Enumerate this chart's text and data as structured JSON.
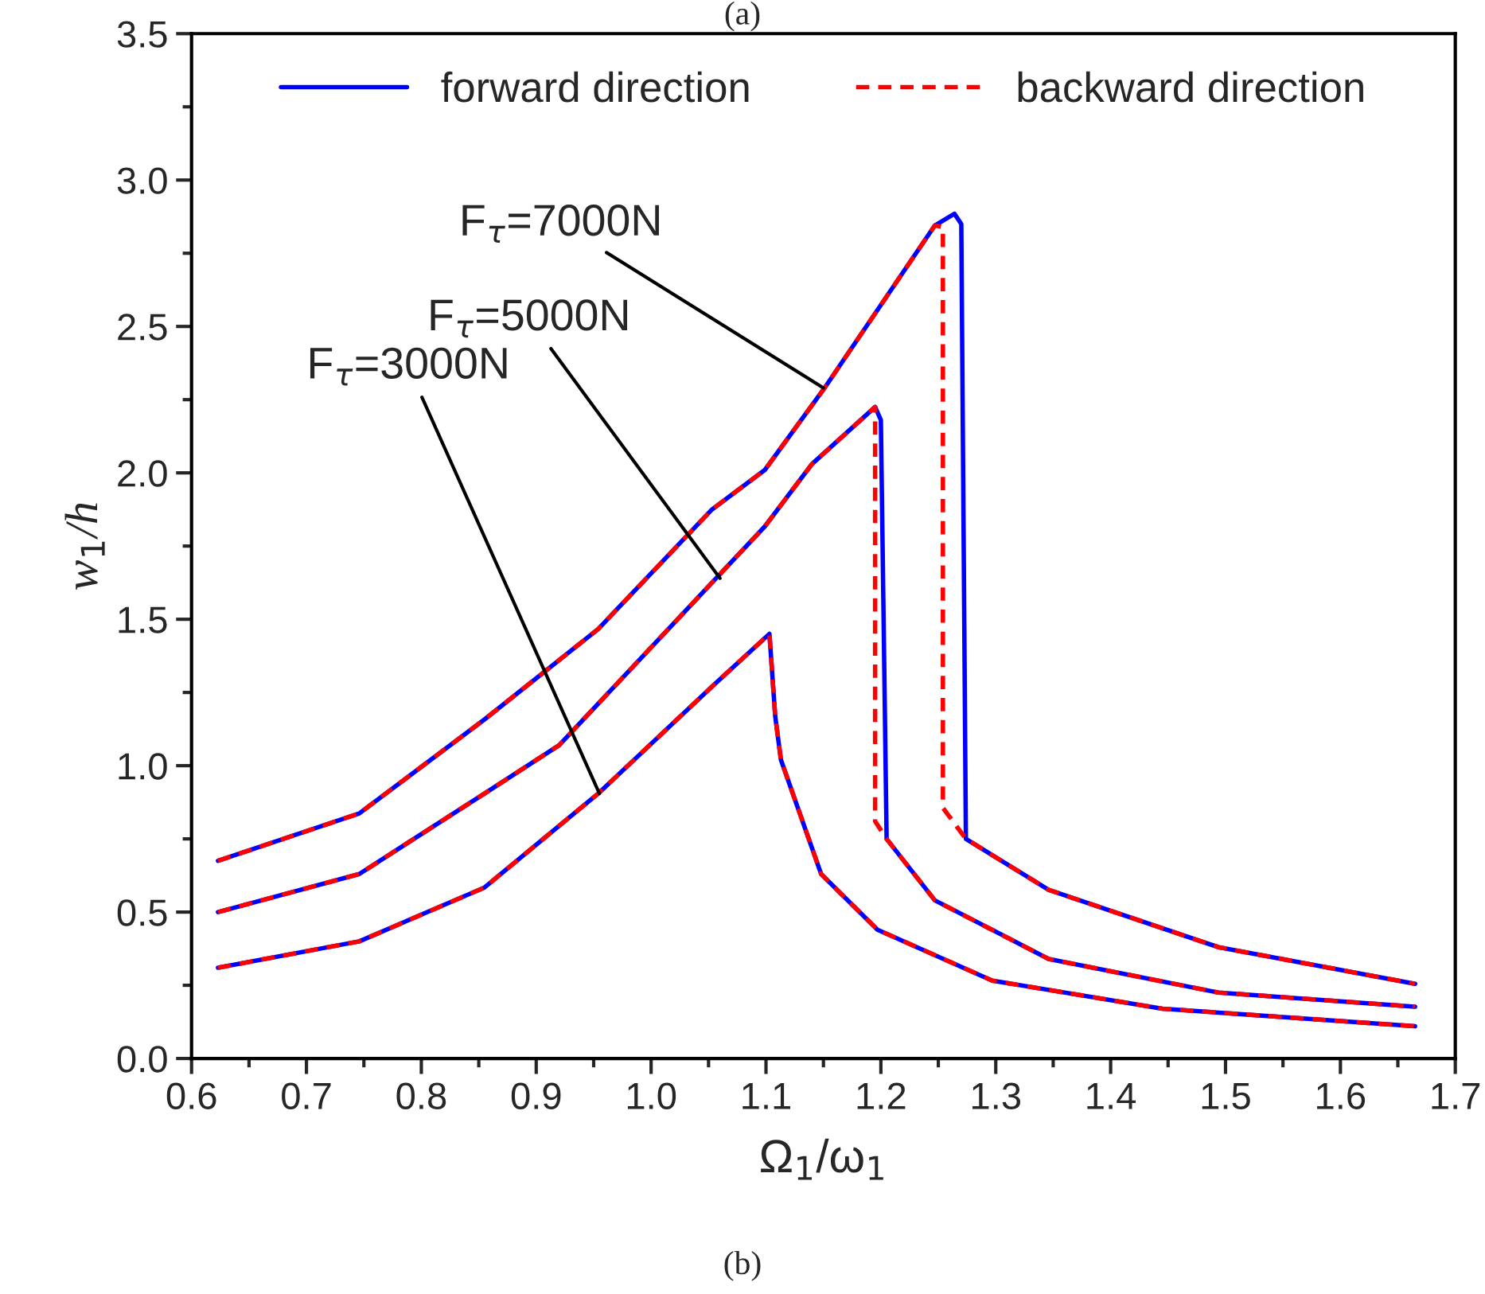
{
  "chart_data": {
    "type": "line",
    "title": "(a)",
    "xlabel": "Ω$_{1}$/ω$_{1}$",
    "ylabel": "w$_{1}$/h",
    "xlim": [
      0.6,
      1.7
    ],
    "ylim": [
      0,
      3.5
    ],
    "xticks": [
      0.6,
      0.7,
      0.8,
      0.9,
      {
        "value": 1,
        "label": "1.0"
      },
      1.1,
      1.2,
      1.3,
      1.4,
      1.5,
      1.6,
      1.7
    ],
    "yticks": [
      {
        "value": 0,
        "label": "0.0"
      },
      0.5,
      {
        "value": 1,
        "label": "1.0"
      },
      1.5,
      {
        "value": 2,
        "label": "2.0"
      },
      2.5,
      {
        "value": 3,
        "label": "3.0"
      },
      3.5
    ],
    "legend": "top",
    "grid": false,
    "series": [
      {
        "name": "forward direction",
        "color": "#0000ff",
        "line_style": "solid",
        "x": [
          0.623,
          0.746,
          0.855,
          0.954,
          1.053,
          1.103,
          1.108,
          1.113,
          1.148,
          1.197,
          1.297,
          1.445,
          1.665,
          null,
          0.623,
          0.746,
          0.855,
          0.92,
          1.053,
          1.099,
          1.14,
          1.195,
          1.2,
          1.205,
          1.247,
          1.346,
          1.494,
          1.665,
          null,
          0.623,
          0.746,
          0.855,
          0.954,
          1.053,
          1.099,
          1.151,
          1.247,
          1.264,
          1.27,
          1.274,
          1.346,
          1.494,
          1.665
        ],
        "values": [
          0.31,
          0.4,
          0.584,
          0.905,
          1.27,
          1.45,
          1.17,
          1.02,
          0.63,
          0.44,
          0.266,
          0.17,
          0.11,
          null,
          0.5,
          0.63,
          0.905,
          1.07,
          1.625,
          1.817,
          2.03,
          2.225,
          2.18,
          0.75,
          0.54,
          0.34,
          0.225,
          0.177,
          null,
          0.675,
          0.837,
          1.158,
          1.467,
          1.875,
          2.01,
          2.29,
          2.845,
          2.885,
          2.85,
          0.75,
          0.576,
          0.38,
          0.255
        ]
      },
      {
        "name": "backward direction",
        "color": "#ff0000",
        "line_style": "dashed",
        "x": [
          0.623,
          0.746,
          0.855,
          0.954,
          1.053,
          1.103,
          1.108,
          1.113,
          1.148,
          1.197,
          1.297,
          1.445,
          1.665,
          null,
          0.623,
          0.746,
          0.855,
          0.92,
          1.053,
          1.099,
          1.14,
          1.195,
          1.195,
          1.205,
          1.247,
          1.346,
          1.494,
          1.665,
          null,
          0.623,
          0.746,
          0.855,
          0.954,
          1.053,
          1.099,
          1.151,
          1.247,
          1.254,
          1.254,
          1.274,
          1.346,
          1.494,
          1.665
        ],
        "values": [
          0.31,
          0.4,
          0.584,
          0.905,
          1.27,
          1.45,
          1.17,
          1.02,
          0.63,
          0.44,
          0.266,
          0.17,
          0.11,
          null,
          0.5,
          0.63,
          0.905,
          1.07,
          1.625,
          1.817,
          2.03,
          2.225,
          0.81,
          0.75,
          0.54,
          0.34,
          0.225,
          0.177,
          null,
          0.675,
          0.837,
          1.158,
          1.467,
          1.875,
          2.01,
          2.29,
          2.845,
          2.84,
          0.856,
          0.75,
          0.576,
          0.38,
          0.255
        ]
      }
    ],
    "annotations": [
      {
        "text": "F$_{τ}$=3000N",
        "x": 0.955,
        "y": 0.905
      },
      {
        "text": "F$_{τ}$=5000N",
        "x": 1.06,
        "y": 1.64
      },
      {
        "text": "F$_{τ}$=7000N",
        "x": 1.15,
        "y": 2.29
      },
      "(b)"
    ]
  }
}
